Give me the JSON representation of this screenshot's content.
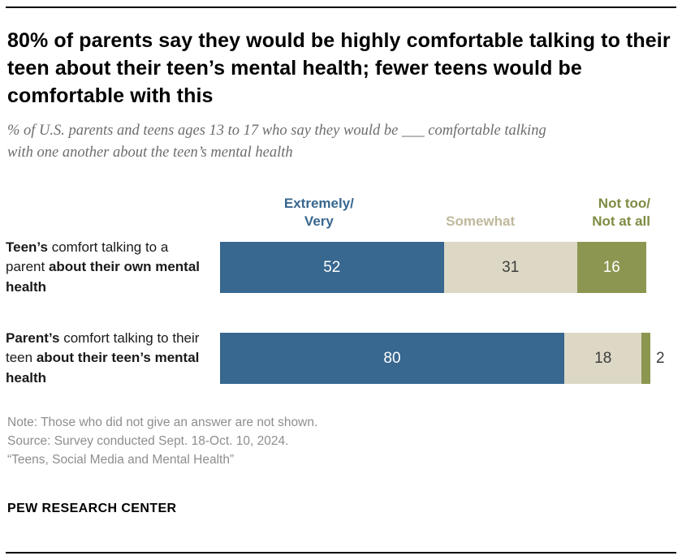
{
  "header": {
    "title": "80% of parents say they would be highly comfortable talking to their teen about their teen’s mental health; fewer teens would be comfortable with this",
    "subtitle": "% of U.S. parents and teens ages 13 to 17 who say they would be ___ comfortable talking with one another about the teen’s mental health"
  },
  "chart_data": {
    "type": "bar",
    "orientation": "horizontal",
    "stacked": true,
    "title": "80% of parents say they would be highly comfortable talking to their teen about their teen’s mental health; fewer teens would be comfortable with this",
    "categories": [
      "Teen’s comfort talking to a parent about their own mental health",
      "Parent’s comfort talking to their teen about their teen’s mental health"
    ],
    "series": [
      {
        "name": "Extremely/Very",
        "header": "Extremely/\nVery",
        "color": "#38678F",
        "values": [
          52,
          80
        ]
      },
      {
        "name": "Somewhat",
        "header": "Somewhat",
        "color": "#DCD8C5",
        "values": [
          31,
          18
        ]
      },
      {
        "name": "Not too/Not at all",
        "header": "Not too/\nNot at all",
        "color": "#8C9650",
        "values": [
          16,
          2
        ]
      }
    ],
    "xlim": [
      0,
      100
    ],
    "legend_position": "top",
    "grid": false,
    "value_labels_shown": true
  },
  "rows": [
    {
      "bold1": "Teen’s",
      "mid": " comfort talking to a parent ",
      "bold2": "about their own mental health"
    },
    {
      "bold1": "Parent’s",
      "mid": " comfort talking to their teen ",
      "bold2": "about their teen’s mental health"
    }
  ],
  "footer": {
    "note": "Note: Those who did not give an answer are not shown.",
    "source": "Source: Survey conducted Sept. 18-Oct. 10, 2024.",
    "report": "“Teens, Social Media and Mental Health”",
    "brand": "PEW RESEARCH CENTER"
  }
}
